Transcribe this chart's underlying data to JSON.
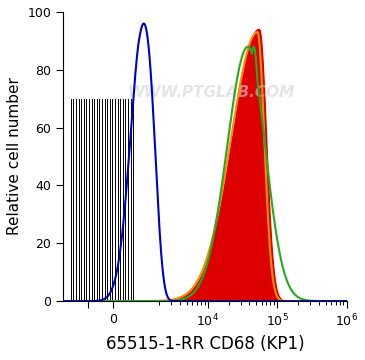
{
  "title": "65515-1-RR CD68 (KP1)",
  "ylabel": "Relative cell number",
  "xlabel": "65515-1-RR CD68 (KP1)",
  "watermark": "WWW.PTGLAB.COM",
  "ylim": [
    0,
    100
  ],
  "background_color": "#ffffff",
  "blue_color": "#0000cc",
  "orange_color": "#ff8c00",
  "green_color": "#22aa22",
  "red_color": "#dd0000",
  "title_fontsize": 12,
  "label_fontsize": 11,
  "tick_fontsize": 9
}
